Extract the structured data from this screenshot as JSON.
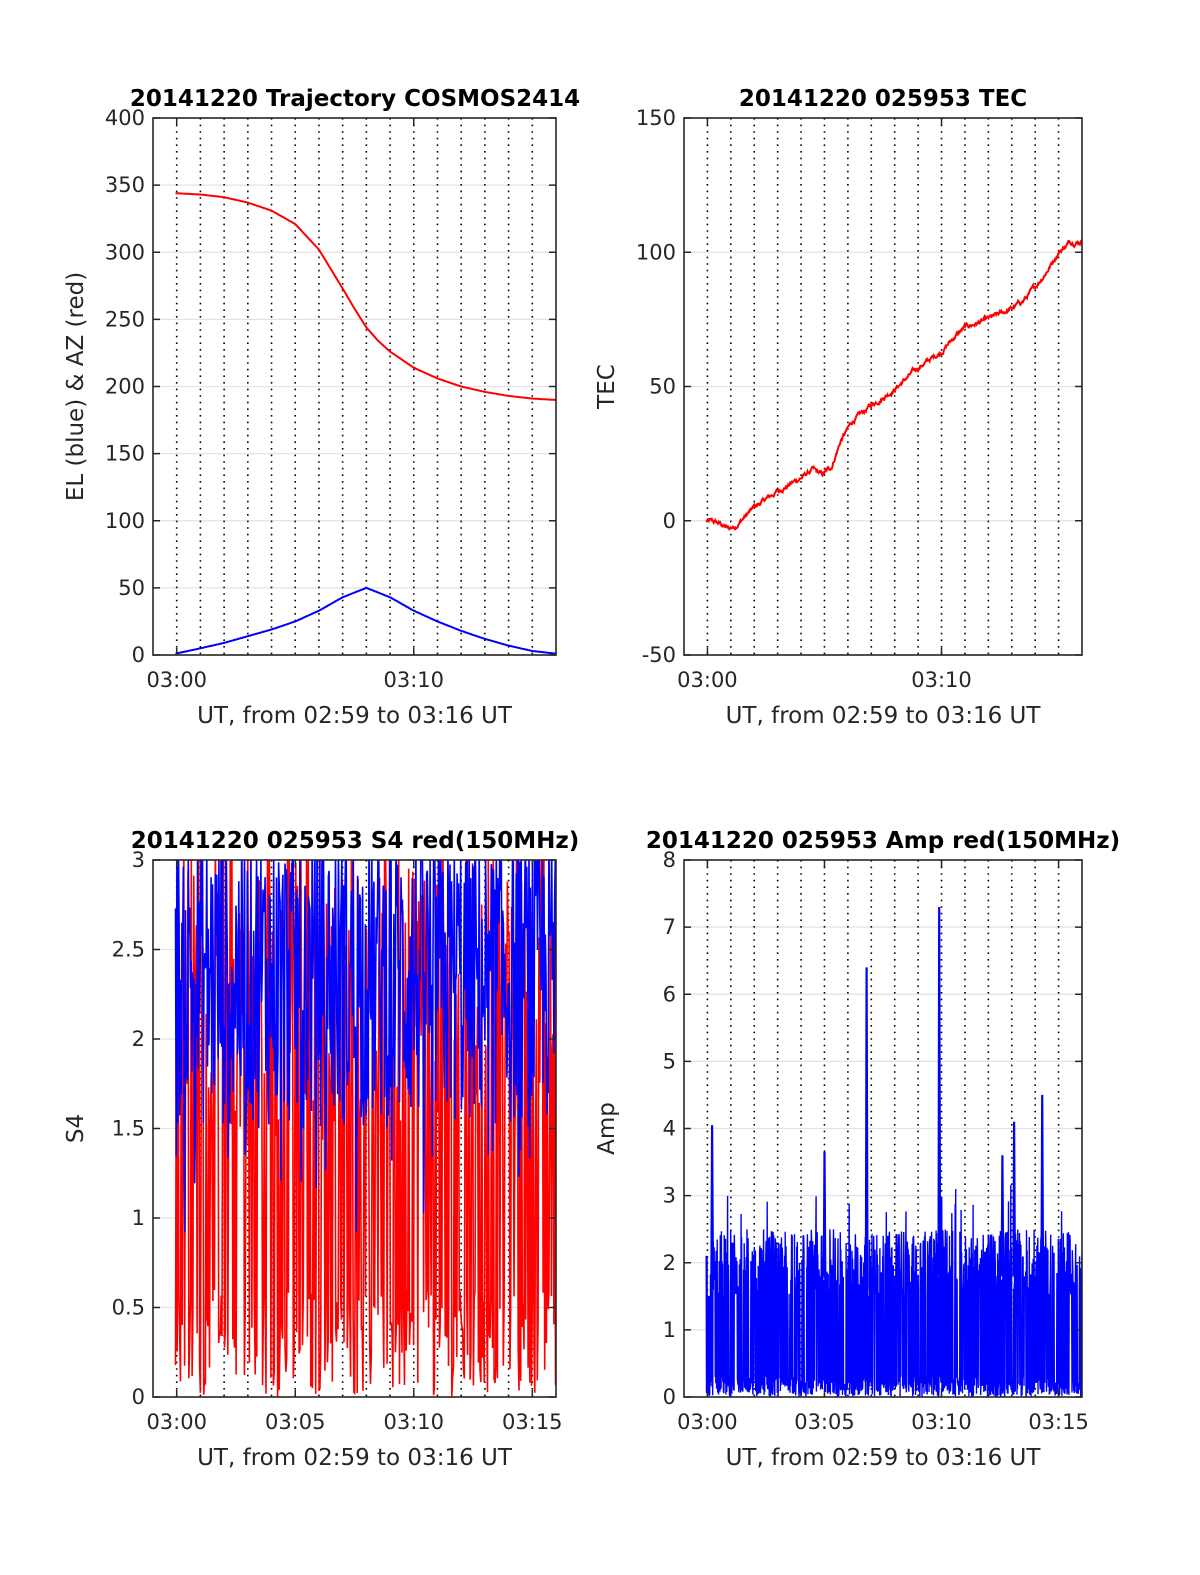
{
  "chart_data": [
    {
      "type": "line",
      "title": "20141220 Trajectory COSMOS2414",
      "xlabel": "UT, from 02:59 to 03:16 UT",
      "ylabel": "EL (blue) & AZ (red)",
      "xlim": [
        -1,
        16
      ],
      "ylim": [
        0,
        400
      ],
      "xticks": [
        0,
        10
      ],
      "xtick_labels": [
        "03:00",
        "03:10"
      ],
      "yticks": [
        0,
        50,
        100,
        150,
        200,
        250,
        300,
        350,
        400
      ],
      "ytick_labels": [
        "0",
        "50",
        "100",
        "150",
        "200",
        "250",
        "300",
        "350",
        "400"
      ],
      "grid": true,
      "series": [
        {
          "color": "#ff0000",
          "x": [
            -0.05,
            1,
            2,
            3,
            4,
            5,
            6,
            7,
            7.5,
            8,
            8.5,
            9,
            10,
            11,
            12,
            13,
            14,
            15,
            16
          ],
          "values": [
            344,
            343,
            341,
            337,
            331,
            321,
            302,
            273,
            258,
            244,
            234,
            226,
            214,
            206,
            200,
            196,
            193,
            191,
            190
          ]
        },
        {
          "color": "#0000ff",
          "x": [
            -0.05,
            1,
            2,
            3,
            4,
            5,
            6,
            7,
            8,
            9,
            10,
            11,
            12,
            13,
            14,
            15,
            16
          ],
          "values": [
            1,
            5,
            9,
            14,
            19,
            25,
            33,
            43,
            50,
            43,
            33,
            25,
            18,
            12,
            7,
            3,
            1
          ]
        }
      ]
    },
    {
      "type": "line",
      "title": "20141220 025953 TEC",
      "xlabel": "UT, from 02:59 to 03:16 UT",
      "ylabel": "TEC",
      "xlim": [
        -1,
        16
      ],
      "ylim": [
        -50,
        150
      ],
      "xticks": [
        0,
        10
      ],
      "xtick_labels": [
        "03:00",
        "03:10"
      ],
      "yticks": [
        -50,
        0,
        50,
        100,
        150
      ],
      "ytick_labels": [
        "-50",
        "0",
        "50",
        "100",
        "150"
      ],
      "grid": true,
      "series": [
        {
          "color": "#ff0000",
          "x": [
            -0.05,
            0.5,
            0.9,
            1.2,
            2,
            3,
            4,
            4.5,
            4.9,
            5.3,
            5.7,
            6.2,
            7,
            7.5,
            8,
            8.5,
            9,
            9.5,
            10,
            10.5,
            11,
            12,
            13,
            13.5,
            14,
            14.5,
            15,
            15.5,
            16
          ],
          "values": [
            0,
            -1,
            -3,
            -2,
            5,
            11,
            16,
            19,
            17,
            20,
            30,
            37,
            43,
            46,
            49,
            53,
            57,
            60,
            63,
            68,
            72,
            75,
            79,
            82,
            87,
            93,
            100,
            104,
            104
          ]
        }
      ]
    },
    {
      "type": "line",
      "title": "20141220 025953 S4 red(150MHz)",
      "xlabel": "UT, from 02:59 to 03:16 UT",
      "ylabel": "S4",
      "xlim": [
        -1,
        16
      ],
      "ylim": [
        0,
        3
      ],
      "xticks": [
        0,
        5,
        10,
        15
      ],
      "xtick_labels": [
        "03:00",
        "03:05",
        "03:10",
        "03:15"
      ],
      "yticks": [
        0,
        0.5,
        1,
        1.5,
        2,
        2.5,
        3
      ],
      "ytick_labels": [
        "0",
        "0.5",
        "1",
        "1.5",
        "2",
        "2.5",
        "3"
      ],
      "grid": true,
      "series": [
        {
          "color": "#ff0000",
          "x_range": [
            -0.05,
            16
          ],
          "typical_range": [
            0,
            3
          ]
        },
        {
          "color": "#0000ff",
          "x_range": [
            -0.05,
            16
          ],
          "typical_range": [
            1.3,
            3
          ]
        }
      ]
    },
    {
      "type": "line",
      "title": "20141220 025953 Amp red(150MHz)",
      "xlabel": "UT, from 02:59 to 03:16 UT",
      "ylabel": "Amp",
      "xlim": [
        -1,
        16
      ],
      "ylim": [
        0,
        8
      ],
      "xticks": [
        0,
        5,
        10,
        15
      ],
      "xtick_labels": [
        "03:00",
        "03:05",
        "03:10",
        "03:15"
      ],
      "yticks": [
        0,
        1,
        2,
        3,
        4,
        5,
        6,
        7,
        8
      ],
      "ytick_labels": [
        "0",
        "1",
        "2",
        "3",
        "4",
        "5",
        "6",
        "7",
        "8"
      ],
      "grid": true,
      "series": [
        {
          "color": "#0000ff",
          "x_range": [
            -0.05,
            16
          ],
          "typical_range": [
            0,
            2.6
          ],
          "peaks": [
            [
              0.2,
              4.05
            ],
            [
              5.0,
              3.65
            ],
            [
              6.8,
              6.4
            ],
            [
              9.9,
              7.3
            ],
            [
              13.1,
              4.1
            ],
            [
              14.3,
              4.5
            ],
            [
              12.6,
              3.6
            ]
          ]
        }
      ]
    }
  ]
}
